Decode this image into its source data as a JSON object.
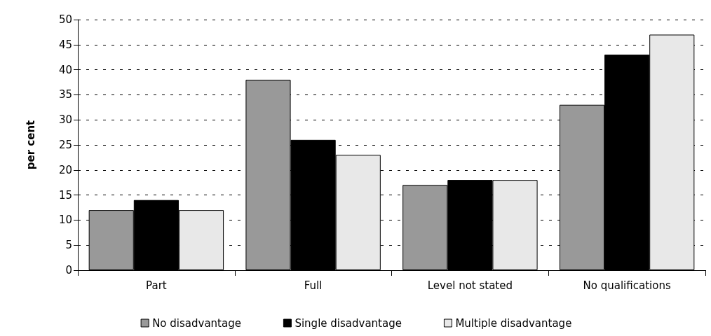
{
  "chart_data": {
    "type": "bar",
    "ylabel": "per cent",
    "categories": [
      "Part",
      "Full",
      "Level not stated",
      "No qualifications"
    ],
    "series": [
      {
        "name": "No disadvantage",
        "color": "#999999",
        "values": [
          12,
          38,
          17,
          33
        ]
      },
      {
        "name": "Single disadvantage",
        "color": "#000000",
        "values": [
          14,
          26,
          18,
          43
        ]
      },
      {
        "name": "Multiple disadvantage",
        "color": "#e8e8e8",
        "values": [
          12,
          23,
          18,
          47
        ]
      }
    ],
    "ylim": [
      0,
      50
    ],
    "yticks": [
      0,
      5,
      10,
      15,
      20,
      25,
      30,
      35,
      40,
      45,
      50
    ],
    "grid": "y",
    "legend": "bottom"
  }
}
